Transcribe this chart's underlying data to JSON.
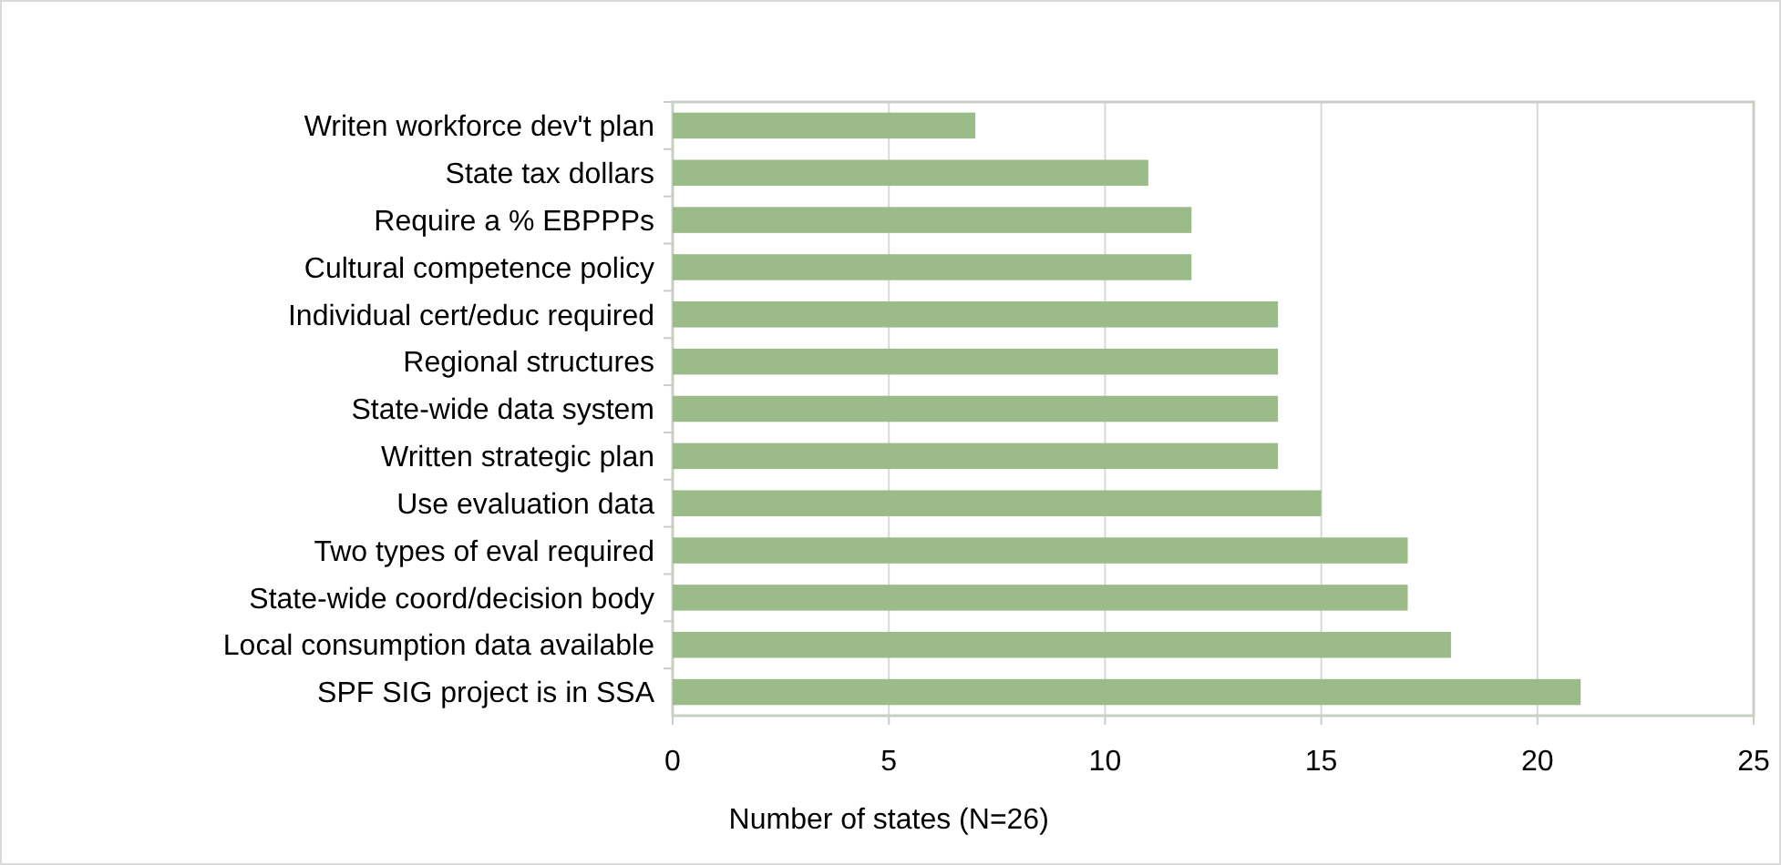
{
  "chart_data": {
    "type": "bar",
    "orientation": "horizontal",
    "xlabel": "Number of states (N=26)",
    "categories": [
      "Writen workforce dev't plan",
      "State tax dollars",
      "Require a % EBPPPs",
      "Cultural competence policy",
      "Individual cert/educ required",
      "Regional structures",
      "State-wide data system",
      "Written strategic plan",
      "Use evaluation data",
      "Two types of eval required",
      "State-wide coord/decision body",
      "Local consumption data available",
      "SPF SIG project is in SSA"
    ],
    "values": [
      7,
      11,
      12,
      12,
      14,
      14,
      14,
      14,
      15,
      17,
      17,
      18,
      21
    ],
    "color": "#9bbb89",
    "xlim": [
      0,
      25
    ],
    "xticks": [
      0,
      5,
      10,
      15,
      20,
      25
    ],
    "grid": "x"
  }
}
